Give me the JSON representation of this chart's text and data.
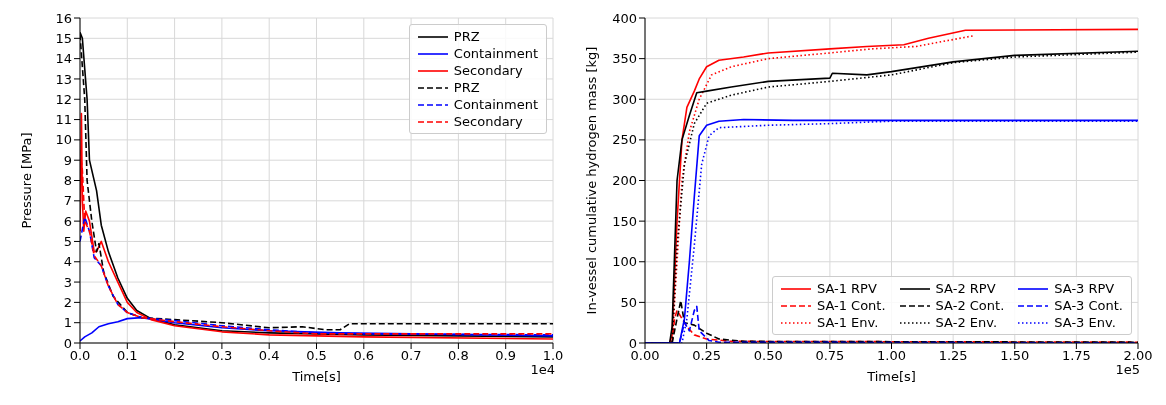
{
  "chart_data": [
    {
      "type": "line",
      "xlabel": "Time[s]",
      "ylabel": "Pressure [MPa]",
      "annotations": [
        "1e4"
      ],
      "xlim": [
        0,
        1.0
      ],
      "ylim": [
        0,
        16
      ],
      "xticks": [
        {
          "value": 0,
          "label": "0.0"
        },
        0.1,
        0.2,
        0.3,
        0.4,
        0.5,
        0.6,
        0.7,
        0.8,
        0.9,
        {
          "value": 1,
          "label": "1.0"
        }
      ],
      "yticks": [
        0,
        1,
        2,
        3,
        4,
        5,
        6,
        7,
        8,
        9,
        10,
        11,
        12,
        13,
        14,
        15,
        16
      ],
      "grid": true,
      "legend": "top right",
      "series": [
        {
          "name": "PRZ",
          "color": "#000000",
          "line_style": "solid",
          "x": [
            0,
            0.005,
            0.01,
            0.015,
            0.02,
            0.025,
            0.035,
            0.045,
            0.06,
            0.08,
            0.1,
            0.12,
            0.15,
            0.2,
            0.3,
            0.4,
            0.6,
            0.8,
            1.0
          ],
          "values": [
            15.3,
            15,
            13.5,
            12,
            9,
            8.5,
            7.5,
            5.8,
            4.5,
            3.2,
            2.2,
            1.6,
            1.2,
            0.9,
            0.6,
            0.5,
            0.4,
            0.35,
            0.3
          ]
        },
        {
          "name": "Containment",
          "color": "#0000ff",
          "line_style": "solid",
          "x": [
            0,
            0.01,
            0.025,
            0.04,
            0.06,
            0.08,
            0.1,
            0.13,
            0.2,
            0.3,
            0.4,
            0.55,
            0.7,
            1.0
          ],
          "values": [
            0.1,
            0.3,
            0.5,
            0.8,
            0.95,
            1.05,
            1.2,
            1.25,
            1.0,
            0.75,
            0.6,
            0.5,
            0.45,
            0.35
          ]
        },
        {
          "name": "Secondary",
          "color": "#ff0000",
          "line_style": "solid",
          "x": [
            0,
            0.003,
            0.005,
            0.008,
            0.012,
            0.02,
            0.03,
            0.035,
            0.045,
            0.06,
            0.08,
            0.1,
            0.12,
            0.15,
            0.2,
            0.3,
            0.4,
            0.6,
            1.0
          ],
          "values": [
            5.5,
            11.3,
            7,
            5.5,
            6.5,
            6,
            4.5,
            4.5,
            5,
            4,
            3,
            2,
            1.5,
            1.15,
            0.85,
            0.55,
            0.4,
            0.3,
            0.2
          ]
        },
        {
          "name": "PRZ",
          "color": "#000000",
          "line_style": "dashed",
          "x": [
            0,
            0.01,
            0.015,
            0.025,
            0.035,
            0.04,
            0.05,
            0.07,
            0.1,
            0.13,
            0.2,
            0.3,
            0.4,
            0.47,
            0.52,
            0.55,
            0.57,
            1.0
          ],
          "values": [
            15.2,
            12,
            8,
            6,
            4.5,
            4.9,
            3.5,
            2.3,
            1.5,
            1.25,
            1.15,
            1.0,
            0.75,
            0.8,
            0.65,
            0.65,
            0.95,
            0.95
          ]
        },
        {
          "name": "Containment",
          "color": "#0000ff",
          "line_style": "dashed",
          "x": [
            0,
            0.01,
            0.02,
            0.03,
            0.045,
            0.06,
            0.08,
            0.1,
            0.13,
            0.2,
            0.3,
            0.4,
            0.5,
            0.6,
            1.0
          ],
          "values": [
            5,
            6.2,
            5.5,
            4.2,
            3.8,
            2.8,
            1.9,
            1.5,
            1.25,
            1.1,
            0.85,
            0.65,
            0.5,
            0.45,
            0.4
          ]
        },
        {
          "name": "Secondary",
          "color": "#ff0000",
          "line_style": "dashed",
          "x": [
            0,
            0.005,
            0.01,
            0.02,
            0.03,
            0.045,
            0.06,
            0.08,
            0.1,
            0.13,
            0.2,
            0.3,
            0.4,
            0.5,
            1.0
          ],
          "values": [
            9.5,
            8.5,
            6,
            5.5,
            4.3,
            3.8,
            2.8,
            1.9,
            1.5,
            1.25,
            1.05,
            0.8,
            0.6,
            0.45,
            0.45
          ]
        }
      ]
    },
    {
      "type": "line",
      "xlabel": "Time[s]",
      "ylabel": "In-vessel cumulative hydrogen mass [kg]",
      "annotations": [
        "1e5"
      ],
      "xlim": [
        0,
        2.0
      ],
      "ylim": [
        0,
        400
      ],
      "xticks": [
        {
          "value": 0,
          "label": "0.00"
        },
        0.25,
        {
          "value": 0.5,
          "label": "0.50"
        },
        0.75,
        {
          "value": 1,
          "label": "1.00"
        },
        1.25,
        {
          "value": 1.5,
          "label": "1.50"
        },
        1.75,
        {
          "value": 2,
          "label": "2.00"
        }
      ],
      "yticks": [
        0,
        50,
        100,
        150,
        200,
        250,
        300,
        350,
        400
      ],
      "grid": true,
      "legend": "bottom right",
      "series": [
        {
          "name": "SA-1 RPV",
          "color": "#ff0000",
          "line_style": "solid",
          "x": [
            0,
            0.1,
            0.11,
            0.13,
            0.15,
            0.17,
            0.2,
            0.22,
            0.25,
            0.3,
            0.4,
            0.5,
            0.75,
            0.9,
            1.05,
            1.15,
            1.3,
            2.0
          ],
          "values": [
            0,
            0,
            10,
            150,
            250,
            290,
            310,
            325,
            340,
            348,
            352,
            357,
            362,
            365,
            367,
            375,
            385,
            386
          ]
        },
        {
          "name": "SA-1 Cont.",
          "color": "#ff0000",
          "line_style": "dashed",
          "x": [
            0,
            0.11,
            0.12,
            0.13,
            0.15,
            0.17,
            0.2,
            0.25,
            0.35,
            2.0
          ],
          "values": [
            0,
            0,
            30,
            40,
            30,
            20,
            10,
            5,
            2,
            1
          ]
        },
        {
          "name": "SA-1 Env.",
          "color": "#ff0000",
          "line_style": "dotted",
          "x": [
            0,
            0.11,
            0.13,
            0.15,
            0.18,
            0.22,
            0.27,
            0.35,
            0.5,
            0.75,
            0.92,
            1.1,
            1.33
          ],
          "values": [
            0,
            0,
            100,
            200,
            260,
            300,
            330,
            340,
            350,
            357,
            362,
            365,
            378
          ]
        },
        {
          "name": "SA-2 RPV",
          "color": "#000000",
          "line_style": "solid",
          "x": [
            0,
            0.1,
            0.11,
            0.13,
            0.15,
            0.18,
            0.21,
            0.25,
            0.35,
            0.5,
            0.75,
            0.76,
            0.9,
            1.0,
            1.25,
            1.5,
            2.0
          ],
          "values": [
            0,
            0,
            20,
            200,
            250,
            280,
            308,
            310,
            315,
            322,
            326,
            332,
            330,
            334,
            346,
            354,
            359
          ]
        },
        {
          "name": "SA-2 Cont.",
          "color": "#000000",
          "line_style": "dashed",
          "x": [
            0,
            0.11,
            0.13,
            0.145,
            0.16,
            0.2,
            0.25,
            0.3,
            0.4,
            2.0
          ],
          "values": [
            0,
            0,
            30,
            52,
            25,
            22,
            12,
            5,
            2,
            1
          ]
        },
        {
          "name": "SA-2 Env.",
          "color": "#000000",
          "line_style": "dotted",
          "x": [
            0,
            0.11,
            0.13,
            0.16,
            0.2,
            0.25,
            0.35,
            0.5,
            0.75,
            1.0,
            1.25,
            1.5,
            2.0
          ],
          "values": [
            0,
            0,
            120,
            220,
            270,
            295,
            305,
            315,
            322,
            330,
            345,
            352,
            358
          ]
        },
        {
          "name": "SA-3 RPV",
          "color": "#0000ff",
          "line_style": "solid",
          "x": [
            0,
            0.14,
            0.16,
            0.18,
            0.2,
            0.22,
            0.25,
            0.3,
            0.4,
            0.6,
            2.0
          ],
          "values": [
            0,
            0,
            30,
            100,
            180,
            255,
            268,
            273,
            275,
            274,
            274
          ]
        },
        {
          "name": "SA-3 Cont.",
          "color": "#0000ff",
          "line_style": "dashed",
          "x": [
            0,
            0.14,
            0.16,
            0.18,
            0.2,
            0.21,
            0.22,
            0.26,
            0.3,
            2.0
          ],
          "values": [
            0,
            0,
            25,
            15,
            40,
            45,
            15,
            3,
            1,
            0
          ]
        },
        {
          "name": "SA-3 Env.",
          "color": "#0000ff",
          "line_style": "dotted",
          "x": [
            0,
            0.15,
            0.17,
            0.2,
            0.23,
            0.26,
            0.3,
            0.5,
            0.75,
            1.0,
            2.0
          ],
          "values": [
            0,
            0,
            30,
            120,
            220,
            255,
            265,
            268,
            270,
            273,
            273
          ]
        }
      ]
    }
  ]
}
